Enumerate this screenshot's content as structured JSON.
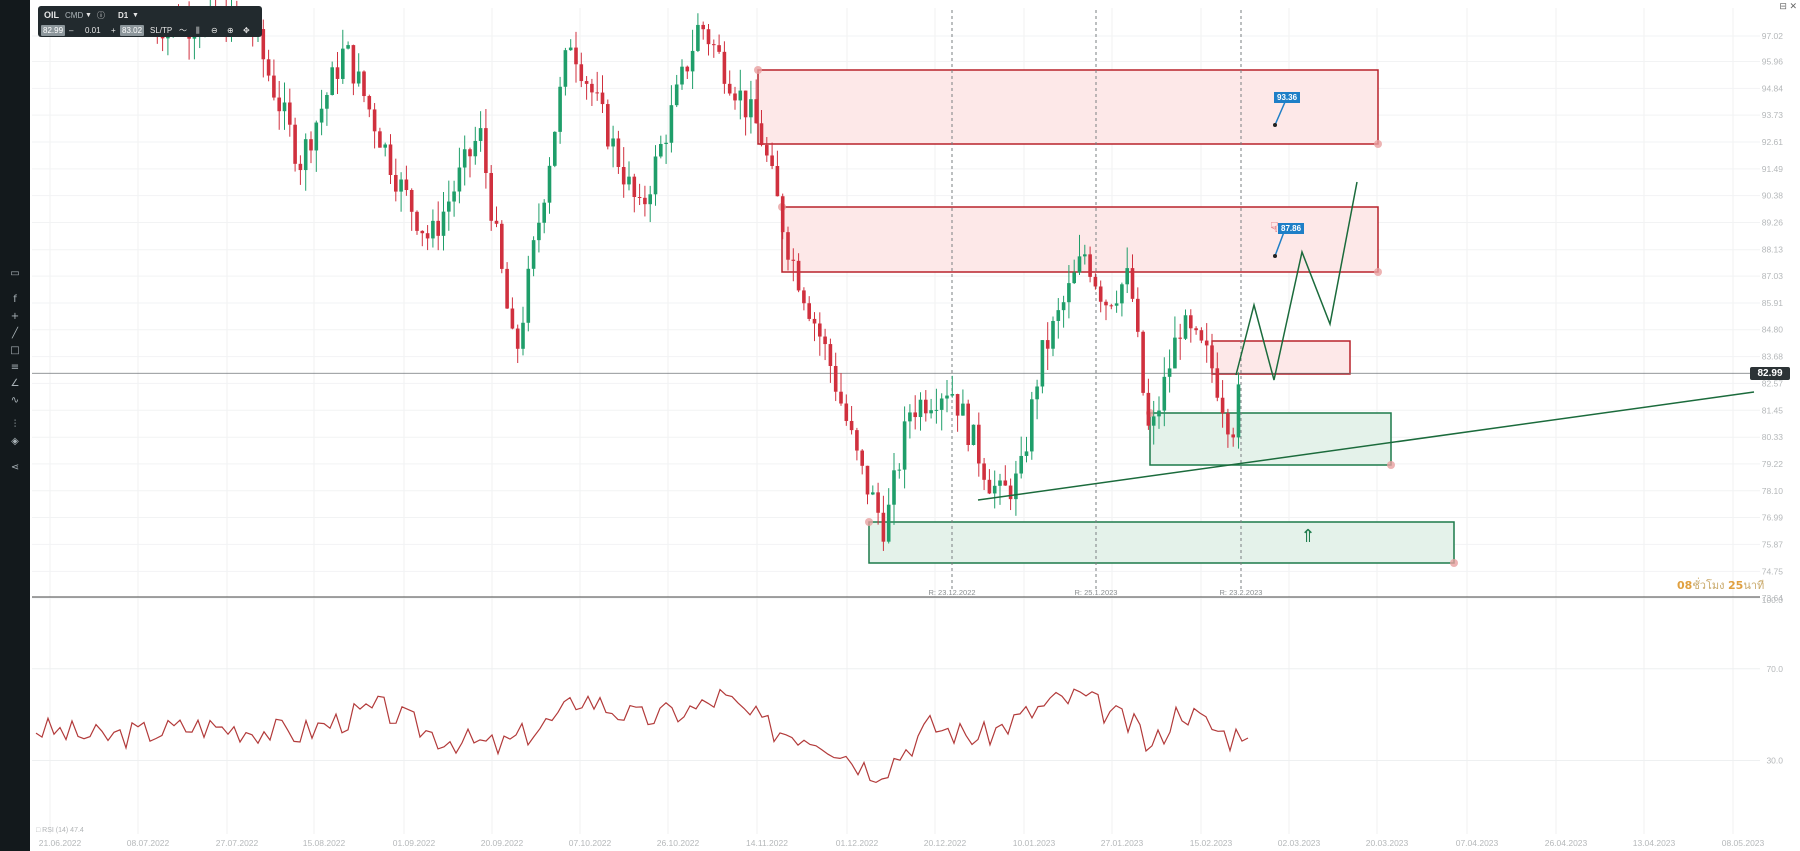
{
  "toolbar": {
    "symbol": "OIL",
    "category": "CMD",
    "timeframe": "D1",
    "bid": "82.99",
    "minus": "–",
    "lot": "0.01",
    "plus": "+",
    "ask": "83.02",
    "sltp": "SL/TP"
  },
  "price_axis": {
    "labels": [
      "97.02",
      "95.96",
      "94.84",
      "93.73",
      "92.61",
      "91.49",
      "90.38",
      "89.26",
      "88.13",
      "87.03",
      "85.91",
      "84.80",
      "83.68",
      "82.57",
      "81.45",
      "80.33",
      "79.22",
      "78.10",
      "76.99",
      "75.87",
      "74.75",
      "73.64"
    ],
    "current_price": "82.99"
  },
  "rsi_axis": {
    "labels": [
      "100.0",
      "70.0",
      "30.0"
    ]
  },
  "time_axis": {
    "labels": [
      "21.06.2022",
      "08.07.2022",
      "27.07.2022",
      "15.08.2022",
      "01.09.2022",
      "20.09.2022",
      "07.10.2022",
      "26.10.2022",
      "14.11.2022",
      "01.12.2022",
      "20.12.2022",
      "10.01.2023",
      "27.01.2023",
      "15.02.2023",
      "02.03.2023",
      "20.03.2023",
      "07.04.2023",
      "26.04.2023",
      "13.04.2023",
      "08.05.2023"
    ]
  },
  "rollover_markers": [
    "R: 23.12.2022",
    "R: 25.1.2023",
    "R: 23.2.2023"
  ],
  "flags": {
    "upper_target": "93.36",
    "lower_target": "87.86"
  },
  "timer": {
    "hours": "08",
    "hours_unit": "ชั่วโมง",
    "minutes": "25",
    "minutes_unit": "นาที"
  },
  "rsi_legend": "□ RSI (14) 47.4",
  "colors": {
    "bull": "#1f9e6a",
    "bear": "#d0303e",
    "resistance_fill": "#fde8e8",
    "resistance_border": "#b8222b",
    "support_fill": "#e4f2ea",
    "support_border": "#1c7a4a",
    "rsi_line": "#b23a3a",
    "projection": "#1b6b3c"
  },
  "icons": [
    "chart-type-icon",
    "function-icon",
    "crosshair-icon",
    "line-tool-icon",
    "rectangle-tool-icon",
    "fibonacci-icon",
    "brush-icon",
    "pattern-icon",
    "indicators-icon",
    "layers-icon",
    "share-icon"
  ]
}
